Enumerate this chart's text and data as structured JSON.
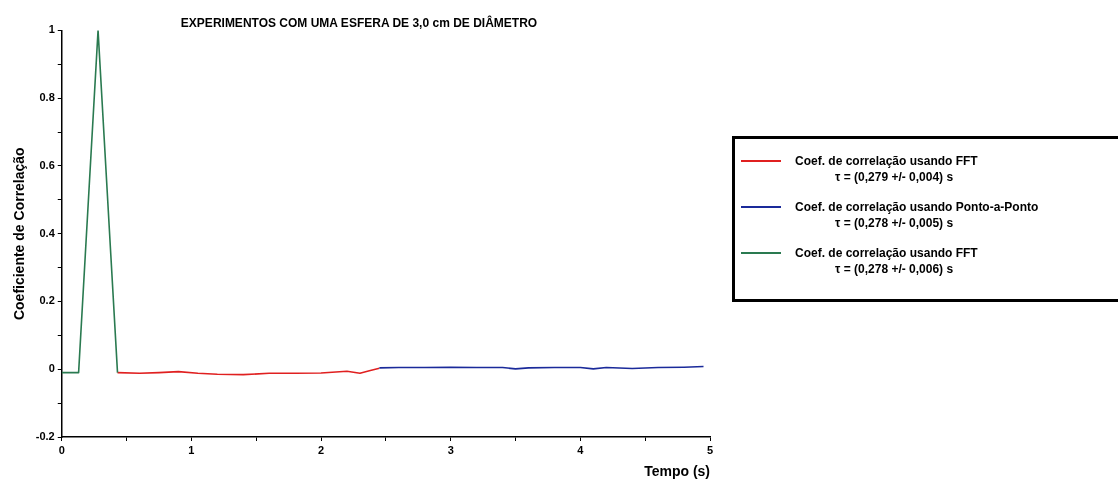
{
  "chart_data": {
    "type": "line",
    "title": "EXPERIMENTOS COM UMA ESFERA DE 3,0 cm DE DIÂMETRO",
    "xlabel": "Tempo (s)",
    "ylabel": "Coeficiente de Correlação",
    "xlim": [
      0,
      5
    ],
    "xticks": [
      0,
      {
        "value": 0.5,
        "label": null
      },
      1,
      {
        "value": 1.5,
        "label": null
      },
      2,
      {
        "value": 2.5,
        "label": null
      },
      3,
      {
        "value": 3.5,
        "label": null
      },
      4,
      {
        "value": 4.5,
        "label": null
      },
      5
    ],
    "ylim": [
      -0.2,
      1
    ],
    "yticks": [
      {
        "value": -0.2,
        "label": "-0.2"
      },
      {
        "value": -0.1,
        "label": null
      },
      0,
      {
        "value": 0.1,
        "label": null
      },
      {
        "value": 0.2,
        "label": "0.2"
      },
      {
        "value": 0.3,
        "label": null
      },
      {
        "value": 0.4,
        "label": "0.4"
      },
      {
        "value": 0.5,
        "label": null
      },
      {
        "value": 0.6,
        "label": "0.6"
      },
      {
        "value": 0.7,
        "label": null
      },
      {
        "value": 0.8,
        "label": "0.8"
      },
      {
        "value": 0.9,
        "label": null
      },
      1
    ],
    "grid": false,
    "legend": "right",
    "marker": "none",
    "line_style": "solid",
    "series": [
      {
        "name": "Coef. de correlação usando FFT\nτ =  (0,279 +/- 0,004) s",
        "color": "#e02020",
        "x": [
          0.43,
          0.6,
          0.75,
          0.9,
          1.05,
          1.2,
          1.4,
          1.6,
          1.8,
          2.0,
          2.2,
          2.3,
          2.38,
          2.45
        ],
        "values": [
          -0.01,
          -0.012,
          -0.01,
          -0.007,
          -0.012,
          -0.015,
          -0.016,
          -0.012,
          -0.012,
          -0.011,
          -0.006,
          -0.012,
          -0.004,
          0.003
        ]
      },
      {
        "name": "Coef. de correlação usando Ponto-a-Ponto\nτ =  (0,278 +/- 0,005) s",
        "color": "#1a2a9a",
        "x": [
          2.45,
          2.6,
          2.8,
          3.0,
          3.2,
          3.4,
          3.5,
          3.6,
          3.8,
          4.0,
          4.1,
          4.2,
          4.4,
          4.6,
          4.8,
          4.95
        ],
        "values": [
          0.004,
          0.005,
          0.005,
          0.006,
          0.005,
          0.005,
          0.001,
          0.004,
          0.005,
          0.005,
          0.001,
          0.005,
          0.002,
          0.005,
          0.006,
          0.008
        ]
      },
      {
        "name": "Coef. de correlação usando FFT\nτ =  (0,278 +/- 0,006) s",
        "color": "#2a7a50",
        "x": [
          0,
          0.13,
          0.28,
          0.43
        ],
        "values": [
          -0.01,
          -0.01,
          1,
          -0.01
        ]
      }
    ]
  }
}
